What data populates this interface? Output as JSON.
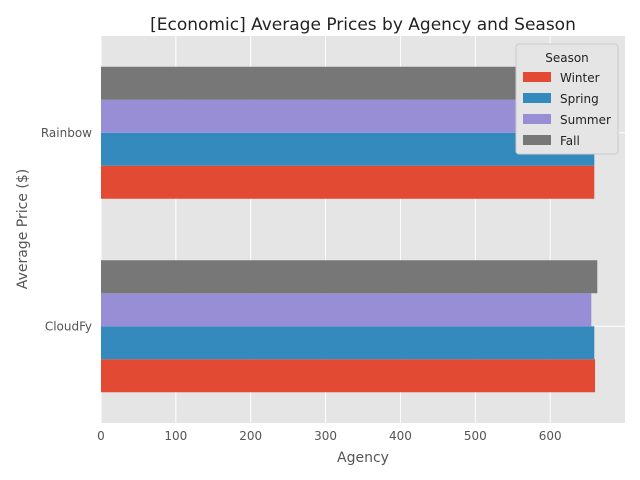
{
  "chart_data": {
    "type": "bar",
    "orientation": "horizontal",
    "title": "[Economic] Average Prices by Agency and Season",
    "xlabel": "Agency",
    "ylabel": "Average Price ($)",
    "categories": [
      "CloudFy",
      "Rainbow"
    ],
    "xlim": [
      0,
      700
    ],
    "xticks": [
      0,
      100,
      200,
      300,
      400,
      500,
      600
    ],
    "grid": true,
    "legend": {
      "title": "Season",
      "placement": "top-right"
    },
    "series": [
      {
        "name": "Winter",
        "color": "#E24A33",
        "values": [
          660,
          659
        ]
      },
      {
        "name": "Spring",
        "color": "#348ABD",
        "values": [
          659,
          659
        ]
      },
      {
        "name": "Summer",
        "color": "#988ED5",
        "values": [
          655,
          659
        ]
      },
      {
        "name": "Fall",
        "color": "#777777",
        "values": [
          663,
          659
        ]
      }
    ]
  }
}
